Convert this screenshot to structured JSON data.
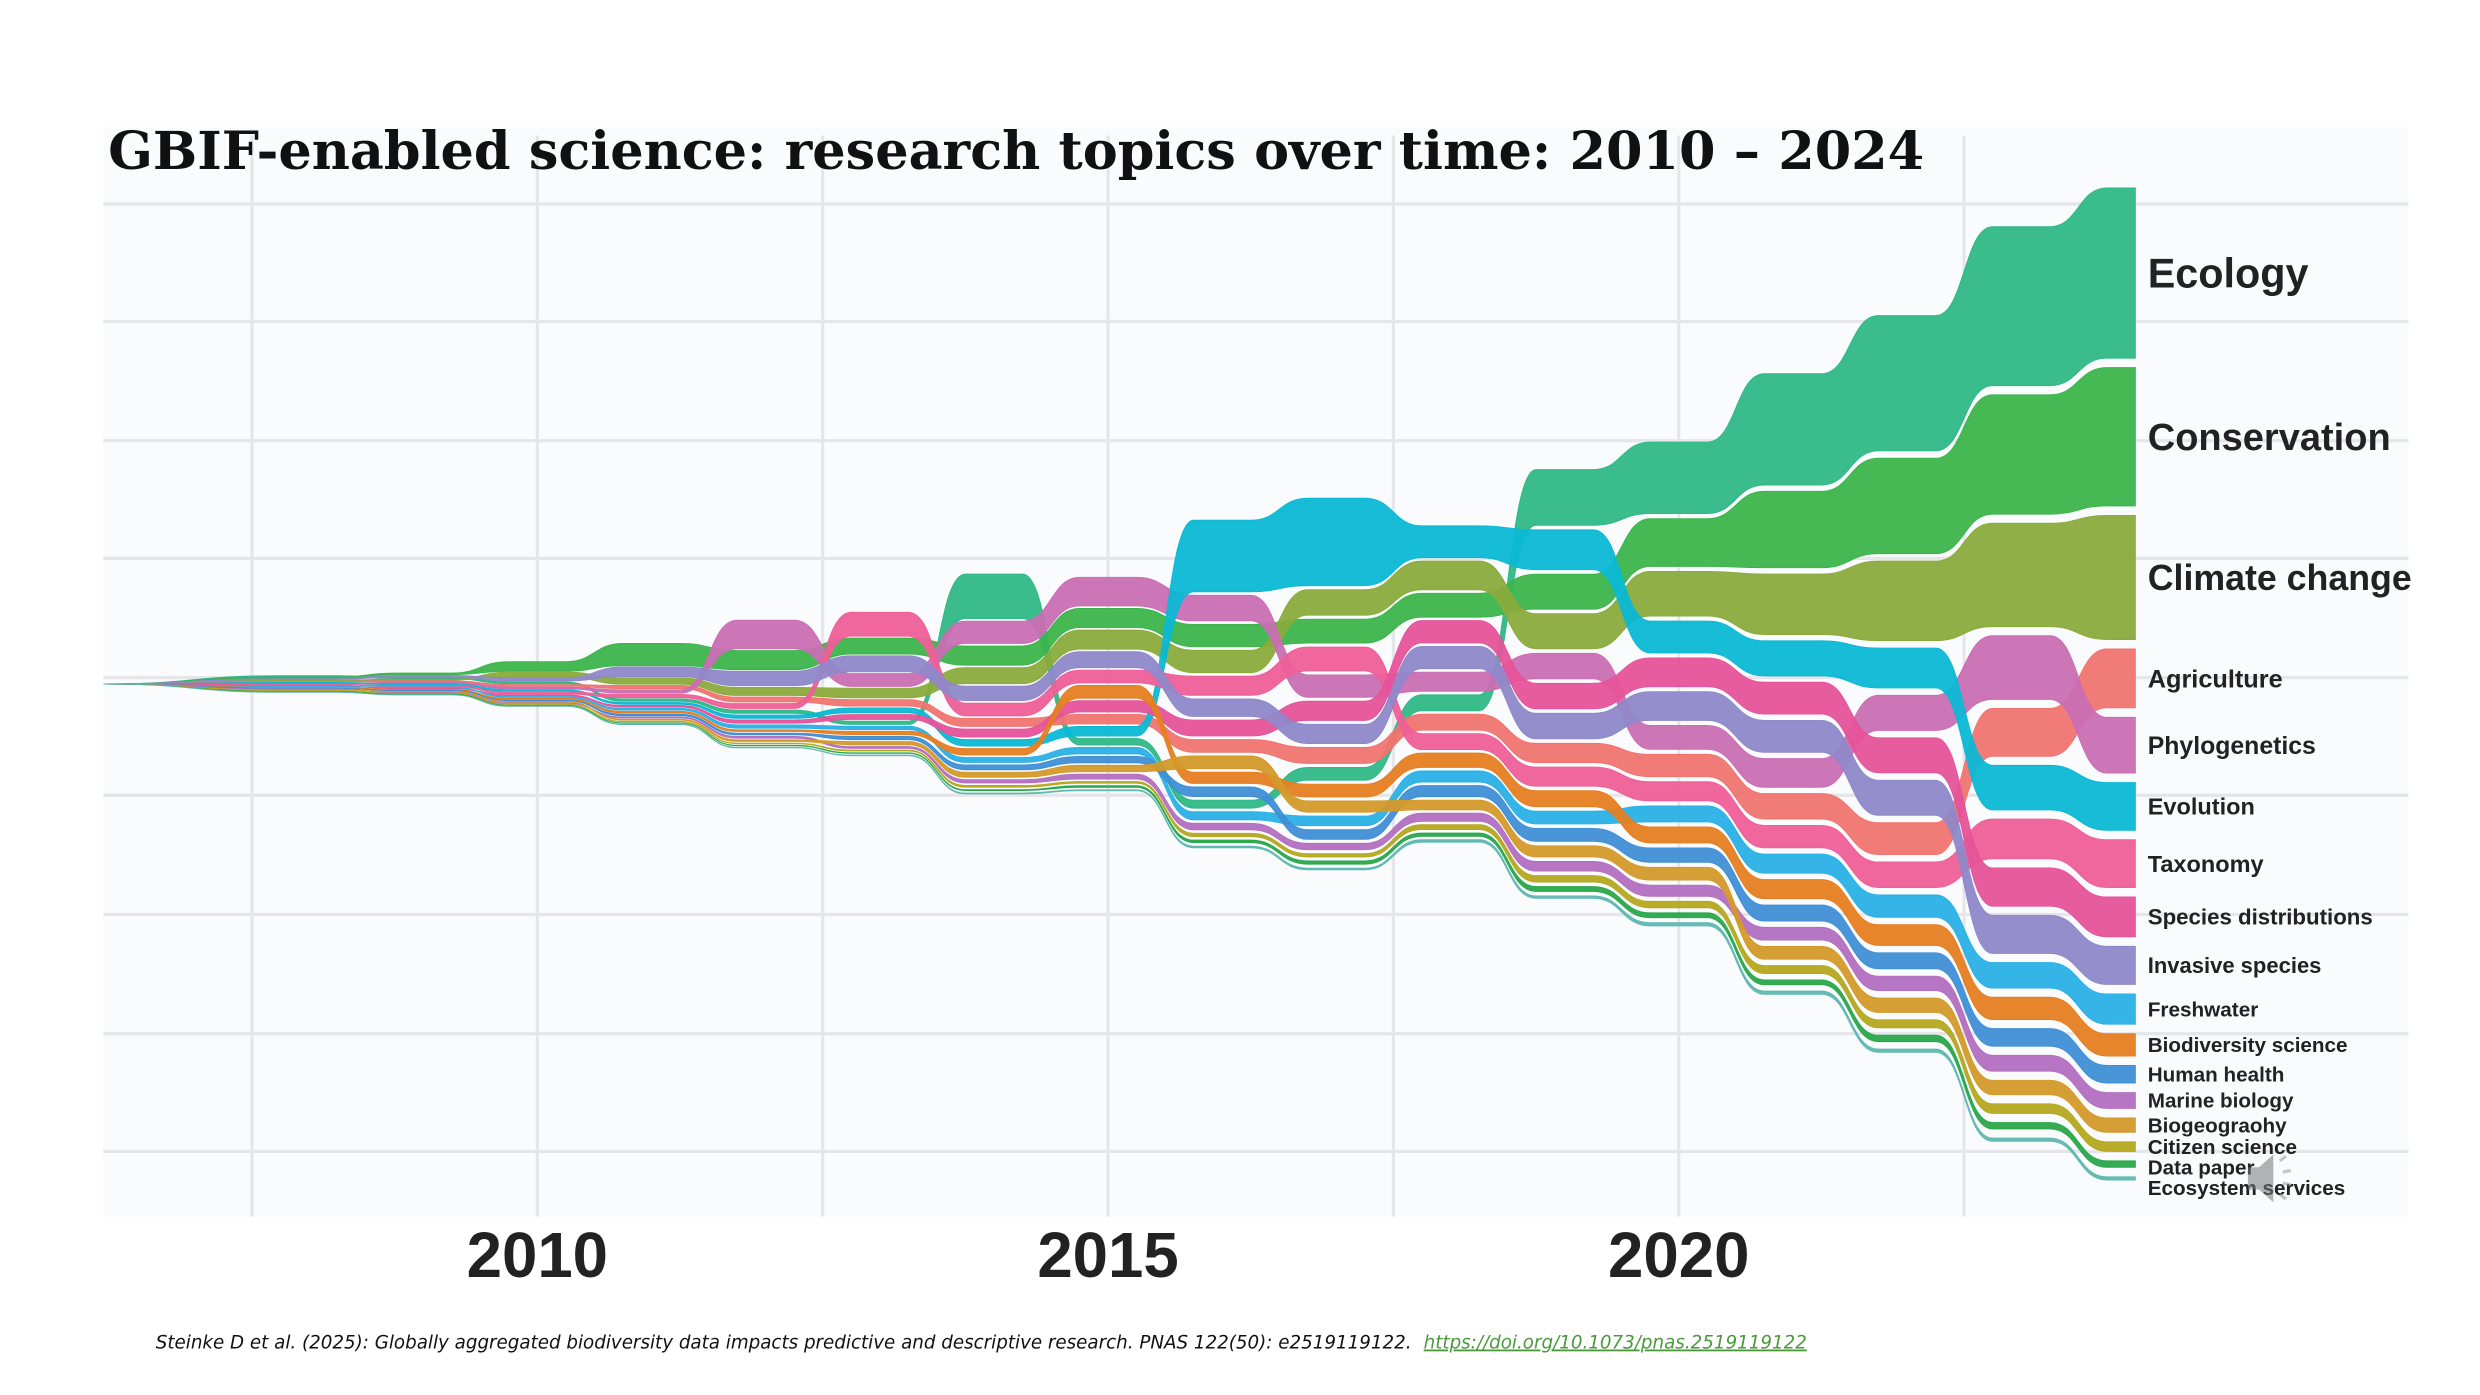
{
  "chart_data": {
    "type": "area",
    "subtype": "ranked stream (bump) chart",
    "title": "GBIF-enabled science: research topics over time: 2010 – 2024",
    "xlabel": "",
    "ylabel": "",
    "x_ticks": [
      "2010",
      "2015",
      "2020"
    ],
    "xlim": [
      2006,
      2024
    ],
    "grid": true,
    "legend": "direct labels at right",
    "years": [
      2008,
      2009,
      2010,
      2011,
      2012,
      2013,
      2014,
      2015,
      2016,
      2017,
      2018,
      2019,
      2020,
      2021,
      2022,
      2023,
      2024
    ],
    "series": [
      {
        "name": "Ecology",
        "color": "#2fb886",
        "values": [
          0.5,
          0.5,
          1,
          1.5,
          2,
          2,
          28,
          4,
          5,
          8,
          10,
          35,
          45,
          70,
          85,
          100,
          107
        ]
      },
      {
        "name": "Conservation",
        "color": "#3cb44b",
        "values": [
          0.5,
          1,
          6,
          14,
          12,
          10,
          12,
          12,
          14,
          15,
          15,
          22,
          30,
          48,
          60,
          75,
          87
        ]
      },
      {
        "name": "Climate change",
        "color": "#8aab3c",
        "values": [
          0.3,
          0.5,
          3,
          4,
          5,
          6,
          10,
          12,
          14,
          16,
          18,
          22,
          28,
          38,
          50,
          65,
          78
        ]
      },
      {
        "name": "Agriculture",
        "color": "#f07470",
        "values": [
          0.3,
          0.5,
          1,
          2,
          3,
          4,
          5,
          6,
          8,
          10,
          10,
          12,
          14,
          16,
          20,
          30,
          37
        ]
      },
      {
        "name": "Phylogenetics",
        "color": "#c96eb3",
        "values": [
          0.2,
          0.5,
          1,
          2,
          18,
          8,
          14,
          18,
          16,
          14,
          12,
          16,
          15,
          18,
          22,
          40,
          35
        ]
      },
      {
        "name": "Evolution",
        "color": "#0bb8d4",
        "values": [
          0.3,
          0.5,
          1,
          1,
          2,
          3,
          4,
          6,
          45,
          55,
          20,
          25,
          20,
          22,
          25,
          28,
          30
        ]
      },
      {
        "name": "Taxonomy",
        "color": "#ee5f97",
        "values": [
          0.2,
          0.5,
          1,
          2,
          3,
          15,
          8,
          8,
          12,
          15,
          10,
          12,
          12,
          14,
          16,
          25,
          30
        ]
      },
      {
        "name": "Species distributions",
        "color": "#e5539a",
        "values": [
          0.1,
          0.2,
          0.5,
          1,
          2,
          3,
          5,
          7,
          10,
          12,
          14,
          16,
          18,
          20,
          22,
          24,
          25
        ]
      },
      {
        "name": "Invasive species",
        "color": "#8f88c9",
        "values": [
          0.5,
          1,
          2,
          6,
          9,
          10,
          9,
          10,
          11,
          12,
          14,
          16,
          18,
          20,
          22,
          24,
          24
        ]
      },
      {
        "name": "Freshwater",
        "color": "#2ab0e6",
        "values": [
          0.1,
          0.3,
          0.5,
          1,
          2,
          2,
          3,
          4,
          5,
          6,
          7,
          8,
          10,
          12,
          14,
          16,
          19
        ]
      },
      {
        "name": "Biodiversity science",
        "color": "#e67e22",
        "values": [
          0.1,
          0.2,
          0.5,
          1,
          1,
          2,
          4,
          8,
          7,
          8,
          9,
          10,
          10,
          12,
          13,
          14,
          14
        ]
      },
      {
        "name": "Human health",
        "color": "#3f8fd6",
        "values": [
          0.1,
          0.2,
          0.3,
          1,
          1,
          2,
          3,
          4,
          6,
          6,
          7,
          8,
          9,
          10,
          10,
          11,
          11
        ]
      },
      {
        "name": "Marine biology",
        "color": "#b36fc0",
        "values": [
          0.1,
          0.1,
          0.2,
          0.5,
          1,
          1,
          2,
          3,
          4,
          4,
          5,
          6,
          7,
          8,
          9,
          10,
          10
        ]
      },
      {
        "name": "Biogeograohy",
        "color": "#d39a2a",
        "values": [
          0.1,
          0.2,
          0.3,
          0.5,
          1,
          2,
          3,
          4,
          8,
          7,
          6,
          7,
          8,
          8,
          9,
          9,
          9
        ]
      },
      {
        "name": "Citizen science",
        "color": "#b5a820",
        "values": [
          0,
          0,
          0.1,
          0.2,
          0.3,
          0.5,
          1,
          1,
          2,
          2,
          3,
          4,
          4,
          5,
          5,
          6,
          6
        ]
      },
      {
        "name": "Data paper",
        "color": "#2aa84a",
        "values": [
          0,
          0,
          0,
          0.1,
          0.2,
          0.3,
          0.5,
          1,
          1.5,
          2,
          2,
          3,
          3,
          3,
          4,
          4,
          4
        ]
      },
      {
        "name": "Ecosystem services",
        "color": "#5fb8b0",
        "values": [
          0,
          0,
          0,
          0.1,
          0.2,
          0.3,
          0.5,
          0.5,
          1,
          1,
          1.5,
          1.5,
          2,
          2,
          2,
          2,
          2
        ]
      }
    ]
  },
  "footnote": {
    "citation": "Steinke D et al. (2025): Globally aggregated biodiversity data impacts predictive and descriptive research. PNAS 122(50): e2519119122.",
    "link": "https://doi.org/10.1073/pnas.2519119122"
  },
  "icons": {
    "speaker": "speaker-icon"
  }
}
